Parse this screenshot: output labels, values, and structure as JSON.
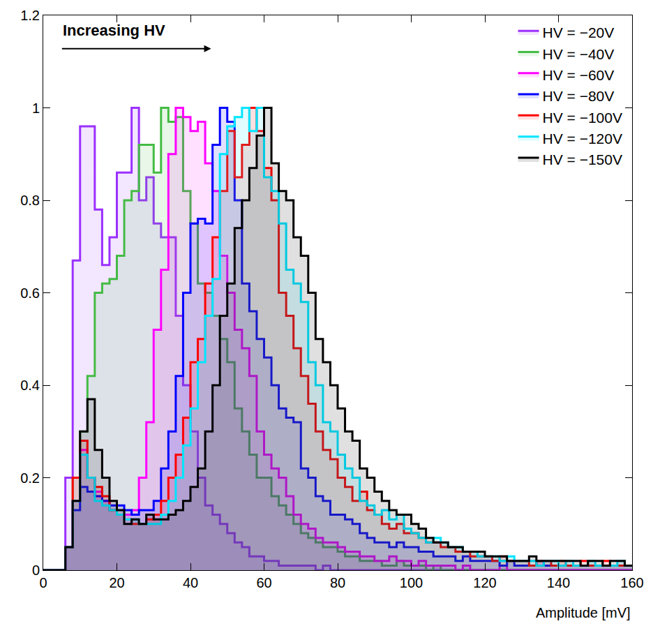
{
  "chart_data": {
    "type": "histogram",
    "x_label": "Amplitude [mV]",
    "annotations": [
      "Increasing HV"
    ],
    "bins": [
      0,
      2,
      4,
      6,
      8,
      10,
      12,
      14,
      16,
      18,
      20,
      22,
      24,
      26,
      28,
      30,
      32,
      34,
      36,
      38,
      40,
      42,
      44,
      46,
      48,
      50,
      52,
      54,
      56,
      58,
      60,
      62,
      64,
      66,
      68,
      70,
      72,
      74,
      76,
      78,
      80,
      82,
      84,
      86,
      88,
      90,
      92,
      94,
      96,
      98,
      100,
      102,
      104,
      106,
      108,
      110,
      112,
      114,
      116,
      118,
      120,
      122,
      124,
      126,
      128,
      130,
      132,
      134,
      136,
      138,
      140,
      142,
      144,
      146,
      148,
      150,
      152,
      154,
      156,
      158,
      160
    ],
    "series": [
      {
        "name": "HV = −20V",
        "color": "#9b30ff",
        "values": [
          0,
          0,
          0,
          0.2,
          0.67,
          0.96,
          0.96,
          0.78,
          0.66,
          0.72,
          0.86,
          0.86,
          1.0,
          0.8,
          0.85,
          0.75,
          0.72,
          0.72,
          0.55,
          0.4,
          0.3,
          0.2,
          0.14,
          0.12,
          0.1,
          0.08,
          0.06,
          0.05,
          0.03,
          0.03,
          0.02,
          0.02,
          0.01,
          0.01,
          0.01,
          0.01,
          0.01,
          0,
          0.01,
          0,
          0,
          0,
          0,
          0,
          0,
          0,
          0,
          0,
          0,
          0,
          0,
          0,
          0,
          0,
          0,
          0,
          0,
          0,
          0,
          0,
          0,
          0,
          0,
          0,
          0,
          0,
          0,
          0,
          0,
          0,
          0,
          0,
          0,
          0,
          0,
          0,
          0,
          0,
          0,
          0
        ]
      },
      {
        "name": "HV = −40V",
        "color": "#44bb44",
        "values": [
          0,
          0,
          0,
          0.05,
          0.2,
          0.3,
          0.42,
          0.6,
          0.62,
          0.63,
          0.68,
          0.8,
          0.82,
          0.92,
          0.92,
          0.86,
          1.0,
          0.97,
          0.98,
          0.82,
          0.75,
          0.62,
          0.6,
          0.55,
          0.5,
          0.45,
          0.35,
          0.3,
          0.25,
          0.2,
          0.2,
          0.16,
          0.14,
          0.12,
          0.1,
          0.08,
          0.07,
          0.06,
          0.05,
          0.05,
          0.04,
          0.03,
          0.03,
          0.02,
          0.02,
          0.02,
          0.01,
          0.01,
          0.02,
          0.01,
          0.01,
          0.01,
          0,
          0.01,
          0,
          0,
          0,
          0,
          0,
          0,
          0,
          0,
          0,
          0,
          0,
          0,
          0,
          0,
          0,
          0,
          0,
          0,
          0,
          0,
          0,
          0,
          0,
          0,
          0,
          0
        ]
      },
      {
        "name": "HV = −60V",
        "color": "#ff00ff",
        "values": [
          0,
          0,
          0,
          0.05,
          0.15,
          0.26,
          0.2,
          0.17,
          0.15,
          0.13,
          0.12,
          0.12,
          0.13,
          0.2,
          0.32,
          0.52,
          0.65,
          0.9,
          1.0,
          0.98,
          0.95,
          0.97,
          0.88,
          0.82,
          0.68,
          0.6,
          0.52,
          0.48,
          0.42,
          0.3,
          0.25,
          0.22,
          0.2,
          0.16,
          0.12,
          0.1,
          0.09,
          0.07,
          0.06,
          0.06,
          0.05,
          0.04,
          0.04,
          0.03,
          0.03,
          0.02,
          0.02,
          0.03,
          0.02,
          0.02,
          0.01,
          0.02,
          0.01,
          0.01,
          0.01,
          0.01,
          0,
          0.01,
          0,
          0,
          0,
          0,
          0.01,
          0,
          0,
          0,
          0,
          0,
          0,
          0,
          0,
          0,
          0,
          0,
          0,
          0,
          0,
          0,
          0,
          0
        ]
      },
      {
        "name": "HV = −80V",
        "color": "#0000ff",
        "values": [
          0,
          0,
          0,
          0.05,
          0.13,
          0.18,
          0.17,
          0.16,
          0.15,
          0.14,
          0.14,
          0.13,
          0.12,
          0.13,
          0.13,
          0.15,
          0.22,
          0.3,
          0.42,
          0.6,
          0.75,
          0.76,
          0.75,
          0.92,
          1.0,
          0.97,
          0.8,
          0.62,
          0.56,
          0.5,
          0.46,
          0.4,
          0.35,
          0.33,
          0.32,
          0.22,
          0.2,
          0.16,
          0.15,
          0.12,
          0.12,
          0.11,
          0.1,
          0.08,
          0.07,
          0.06,
          0.06,
          0.05,
          0.06,
          0.05,
          0.05,
          0.04,
          0.04,
          0.03,
          0.03,
          0.03,
          0.02,
          0.03,
          0.02,
          0.02,
          0.02,
          0.02,
          0.01,
          0.02,
          0.01,
          0.01,
          0.01,
          0.02,
          0.01,
          0.01,
          0.01,
          0.01,
          0.01,
          0.01,
          0.01,
          0.01,
          0.01,
          0.01,
          0.01,
          0.01
        ]
      },
      {
        "name": "HV = −100V",
        "color": "#ff0000",
        "values": [
          0,
          0,
          0,
          0.05,
          0.2,
          0.28,
          0.2,
          0.18,
          0.16,
          0.13,
          0.12,
          0.11,
          0.1,
          0.1,
          0.11,
          0.12,
          0.15,
          0.2,
          0.25,
          0.33,
          0.45,
          0.5,
          0.62,
          0.72,
          0.82,
          0.95,
          0.85,
          0.92,
          1.0,
          0.95,
          0.87,
          0.8,
          0.6,
          0.55,
          0.48,
          0.42,
          0.36,
          0.3,
          0.26,
          0.24,
          0.2,
          0.18,
          0.15,
          0.17,
          0.13,
          0.12,
          0.1,
          0.09,
          0.1,
          0.08,
          0.08,
          0.07,
          0.06,
          0.06,
          0.05,
          0.05,
          0.04,
          0.04,
          0.03,
          0.03,
          0.03,
          0.02,
          0.03,
          0.02,
          0.02,
          0.02,
          0.01,
          0.02,
          0.02,
          0.01,
          0.02,
          0.01,
          0.01,
          0.02,
          0.01,
          0.01,
          0.02,
          0.01,
          0.01,
          0.01
        ]
      },
      {
        "name": "HV = −120V",
        "color": "#00e5ff",
        "values": [
          0,
          0,
          0,
          0.05,
          0.15,
          0.25,
          0.2,
          0.15,
          0.14,
          0.13,
          0.12,
          0.11,
          0.11,
          0.1,
          0.1,
          0.1,
          0.12,
          0.15,
          0.2,
          0.27,
          0.35,
          0.45,
          0.55,
          0.63,
          0.9,
          0.96,
          0.98,
          1.0,
          0.95,
          1.0,
          0.85,
          0.82,
          0.75,
          0.65,
          0.62,
          0.58,
          0.45,
          0.4,
          0.32,
          0.3,
          0.25,
          0.22,
          0.2,
          0.15,
          0.14,
          0.12,
          0.13,
          0.11,
          0.12,
          0.09,
          0.08,
          0.07,
          0.06,
          0.07,
          0.06,
          0.05,
          0.05,
          0.04,
          0.04,
          0.03,
          0.03,
          0.03,
          0.02,
          0.03,
          0.02,
          0.02,
          0.02,
          0.01,
          0.02,
          0.02,
          0.01,
          0.02,
          0.01,
          0.01,
          0.02,
          0.01,
          0.01,
          0.01,
          0.02,
          0.01
        ]
      },
      {
        "name": "HV = −150V",
        "color": "#000000",
        "values": [
          0,
          0,
          0,
          0.05,
          0.15,
          0.3,
          0.37,
          0.26,
          0.2,
          0.15,
          0.13,
          0.1,
          0.11,
          0.1,
          0.12,
          0.11,
          0.11,
          0.12,
          0.13,
          0.15,
          0.18,
          0.22,
          0.3,
          0.4,
          0.55,
          0.62,
          0.74,
          0.8,
          0.87,
          0.94,
          1.0,
          0.88,
          0.82,
          0.8,
          0.72,
          0.68,
          0.6,
          0.5,
          0.45,
          0.4,
          0.35,
          0.3,
          0.28,
          0.22,
          0.2,
          0.17,
          0.15,
          0.13,
          0.12,
          0.12,
          0.1,
          0.09,
          0.07,
          0.06,
          0.06,
          0.05,
          0.05,
          0.04,
          0.04,
          0.04,
          0.03,
          0.03,
          0.03,
          0.02,
          0.02,
          0.02,
          0.03,
          0.02,
          0.02,
          0.02,
          0.02,
          0.02,
          0.02,
          0.01,
          0.02,
          0.02,
          0.01,
          0.02,
          0.02,
          0.01
        ]
      }
    ],
    "xlim": [
      0,
      160
    ],
    "xticks": [
      0,
      20,
      40,
      60,
      80,
      100,
      120,
      140,
      160
    ],
    "ylim": [
      0,
      1.2
    ],
    "yticks": [
      0,
      0.2,
      0.4,
      0.6,
      0.8,
      1,
      1.2
    ],
    "grid": false,
    "legend": "upper right"
  }
}
